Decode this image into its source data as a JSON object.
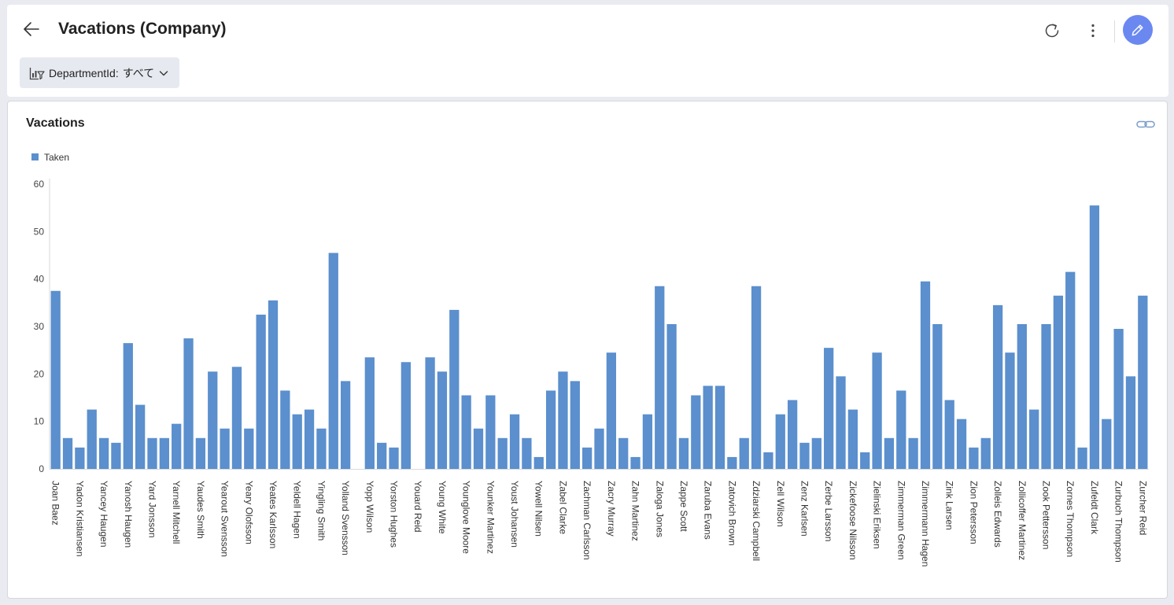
{
  "header": {
    "title": "Vacations (Company)",
    "back_icon": "arrow-left-icon",
    "refresh_icon": "refresh-icon",
    "more_icon": "more-vertical-icon",
    "edit_icon": "pencil-icon",
    "edit_color": "#6a88f0"
  },
  "filter": {
    "icon": "filter-chart-icon",
    "label": "DepartmentId:",
    "value": "すべて"
  },
  "card": {
    "title": "Vacations",
    "link_icon": "link-icon"
  },
  "chart_data": {
    "type": "bar",
    "legend_position": "top-left",
    "grid": false,
    "series": [
      {
        "name": "Taken",
        "color": "#5b8fcd",
        "values": [
          37.5,
          6.5,
          4.5,
          12.5,
          6.5,
          5.5,
          26.5,
          13.5,
          6.5,
          6.5,
          9.5,
          27.5,
          6.5,
          20.5,
          8.5,
          21.5,
          8.5,
          32.5,
          35.5,
          16.5,
          11.5,
          12.5,
          8.5,
          45.5,
          18.5,
          0,
          23.5,
          5.5,
          4.5,
          22.5,
          0,
          23.5,
          20.5,
          33.5,
          15.5,
          8.5,
          15.5,
          6.5,
          11.5,
          6.5,
          2.5,
          16.5,
          20.5,
          18.5,
          4.5,
          8.5,
          24.5,
          6.5,
          2.5,
          11.5,
          38.5,
          30.5,
          6.5,
          15.5,
          17.5,
          17.5,
          2.5,
          6.5,
          38.5,
          3.5,
          11.5,
          14.5,
          5.5,
          6.5,
          25.5,
          19.5,
          12.5,
          3.5,
          24.5,
          6.5,
          16.5,
          6.5,
          39.5,
          30.5,
          14.5,
          10.5,
          4.5,
          6.5,
          34.5,
          24.5,
          30.5,
          12.5,
          30.5,
          36.5,
          41.5,
          4.5,
          55.5,
          10.5,
          29.5,
          19.5,
          36.5
        ]
      }
    ],
    "categories": [
      "Joan Baez",
      "",
      "Yadon Kristiansen",
      "",
      "Yancey Haugen",
      "",
      "Yanosh Haugen",
      "",
      "Yard Jonsson",
      "",
      "Yarnell Mitchell",
      "",
      "Yaudes Smith",
      "",
      "Yearout Svensson",
      "",
      "Yeary Olofsson",
      "",
      "Yeates Karlsson",
      "",
      "Yeldell Hagen",
      "",
      "Yingling Smith",
      "",
      "Yolland Svensson",
      "",
      "Yopp Wilson",
      "",
      "Yorston Hughes",
      "",
      "Youard Reid",
      "",
      "Young White",
      "",
      "Younglove Moore",
      "",
      "Younker Martinez",
      "",
      "Youst Johansen",
      "",
      "Yowell Nilsen",
      "",
      "Zabel Clarke",
      "",
      "Zachman Carlsson",
      "",
      "Zacry Murray",
      "",
      "Zahn Martinez",
      "",
      "Zaloga Jones",
      "",
      "Zappe Scott",
      "",
      "Zaruba Evans",
      "",
      "Zatovich Brown",
      "",
      "Zdziarski Campbell",
      "",
      "Zell Wilson",
      "",
      "Zenz Karlsen",
      "",
      "Zerbe Larsson",
      "",
      "Zickefoose Nilsson",
      "",
      "Zielinski Eriksen",
      "",
      "Zimmerman Green",
      "",
      "Zimmermann Hagen",
      "",
      "Zink Larsen",
      "",
      "Zion Petersson",
      "",
      "Zolleis Edwards",
      "",
      "Zollicoffer Martinez",
      "",
      "Zook Pettersson",
      "",
      "Zornes Thompson",
      "",
      "Zufeldt Clark",
      "",
      "Zurbuch Thompson",
      "",
      "Zurcher Reid"
    ],
    "yticks": [
      "60",
      "50",
      "40",
      "30",
      "20",
      "10",
      "0"
    ],
    "ylim": [
      0,
      60
    ]
  }
}
